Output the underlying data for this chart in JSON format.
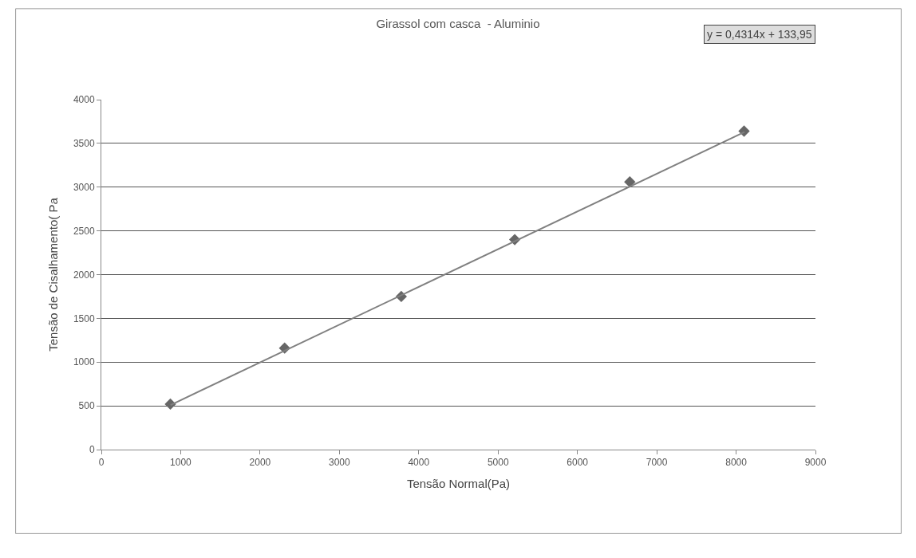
{
  "chart_data": {
    "type": "scatter",
    "title": "Girassol com casca  - Aluminio",
    "xlabel": "Tensão Normal(Pa)",
    "ylabel": "Tensão de Cisalhamento( Pa",
    "annotations": [
      "y = 0,4314x + 133,95"
    ],
    "xlim": [
      0,
      9000
    ],
    "xticks": [
      0,
      1000,
      2000,
      3000,
      4000,
      5000,
      6000,
      7000,
      8000,
      9000
    ],
    "ylim": [
      0,
      4000
    ],
    "yticks": [
      0,
      500,
      1000,
      1500,
      2000,
      2500,
      3000,
      3500,
      4000
    ],
    "grid": "y",
    "marker": "diamond",
    "series": [
      {
        "color": "#666666",
        "x": [
          870,
          2310,
          3780,
          5210,
          6660,
          8100
        ],
        "values": [
          520,
          1160,
          1750,
          2400,
          3060,
          3640
        ]
      },
      {
        "type": "line",
        "color": "#808080",
        "marker": "none",
        "line_style": "solid",
        "x": [
          873,
          8105
        ],
        "values": [
          510,
          3630
        ]
      }
    ]
  }
}
